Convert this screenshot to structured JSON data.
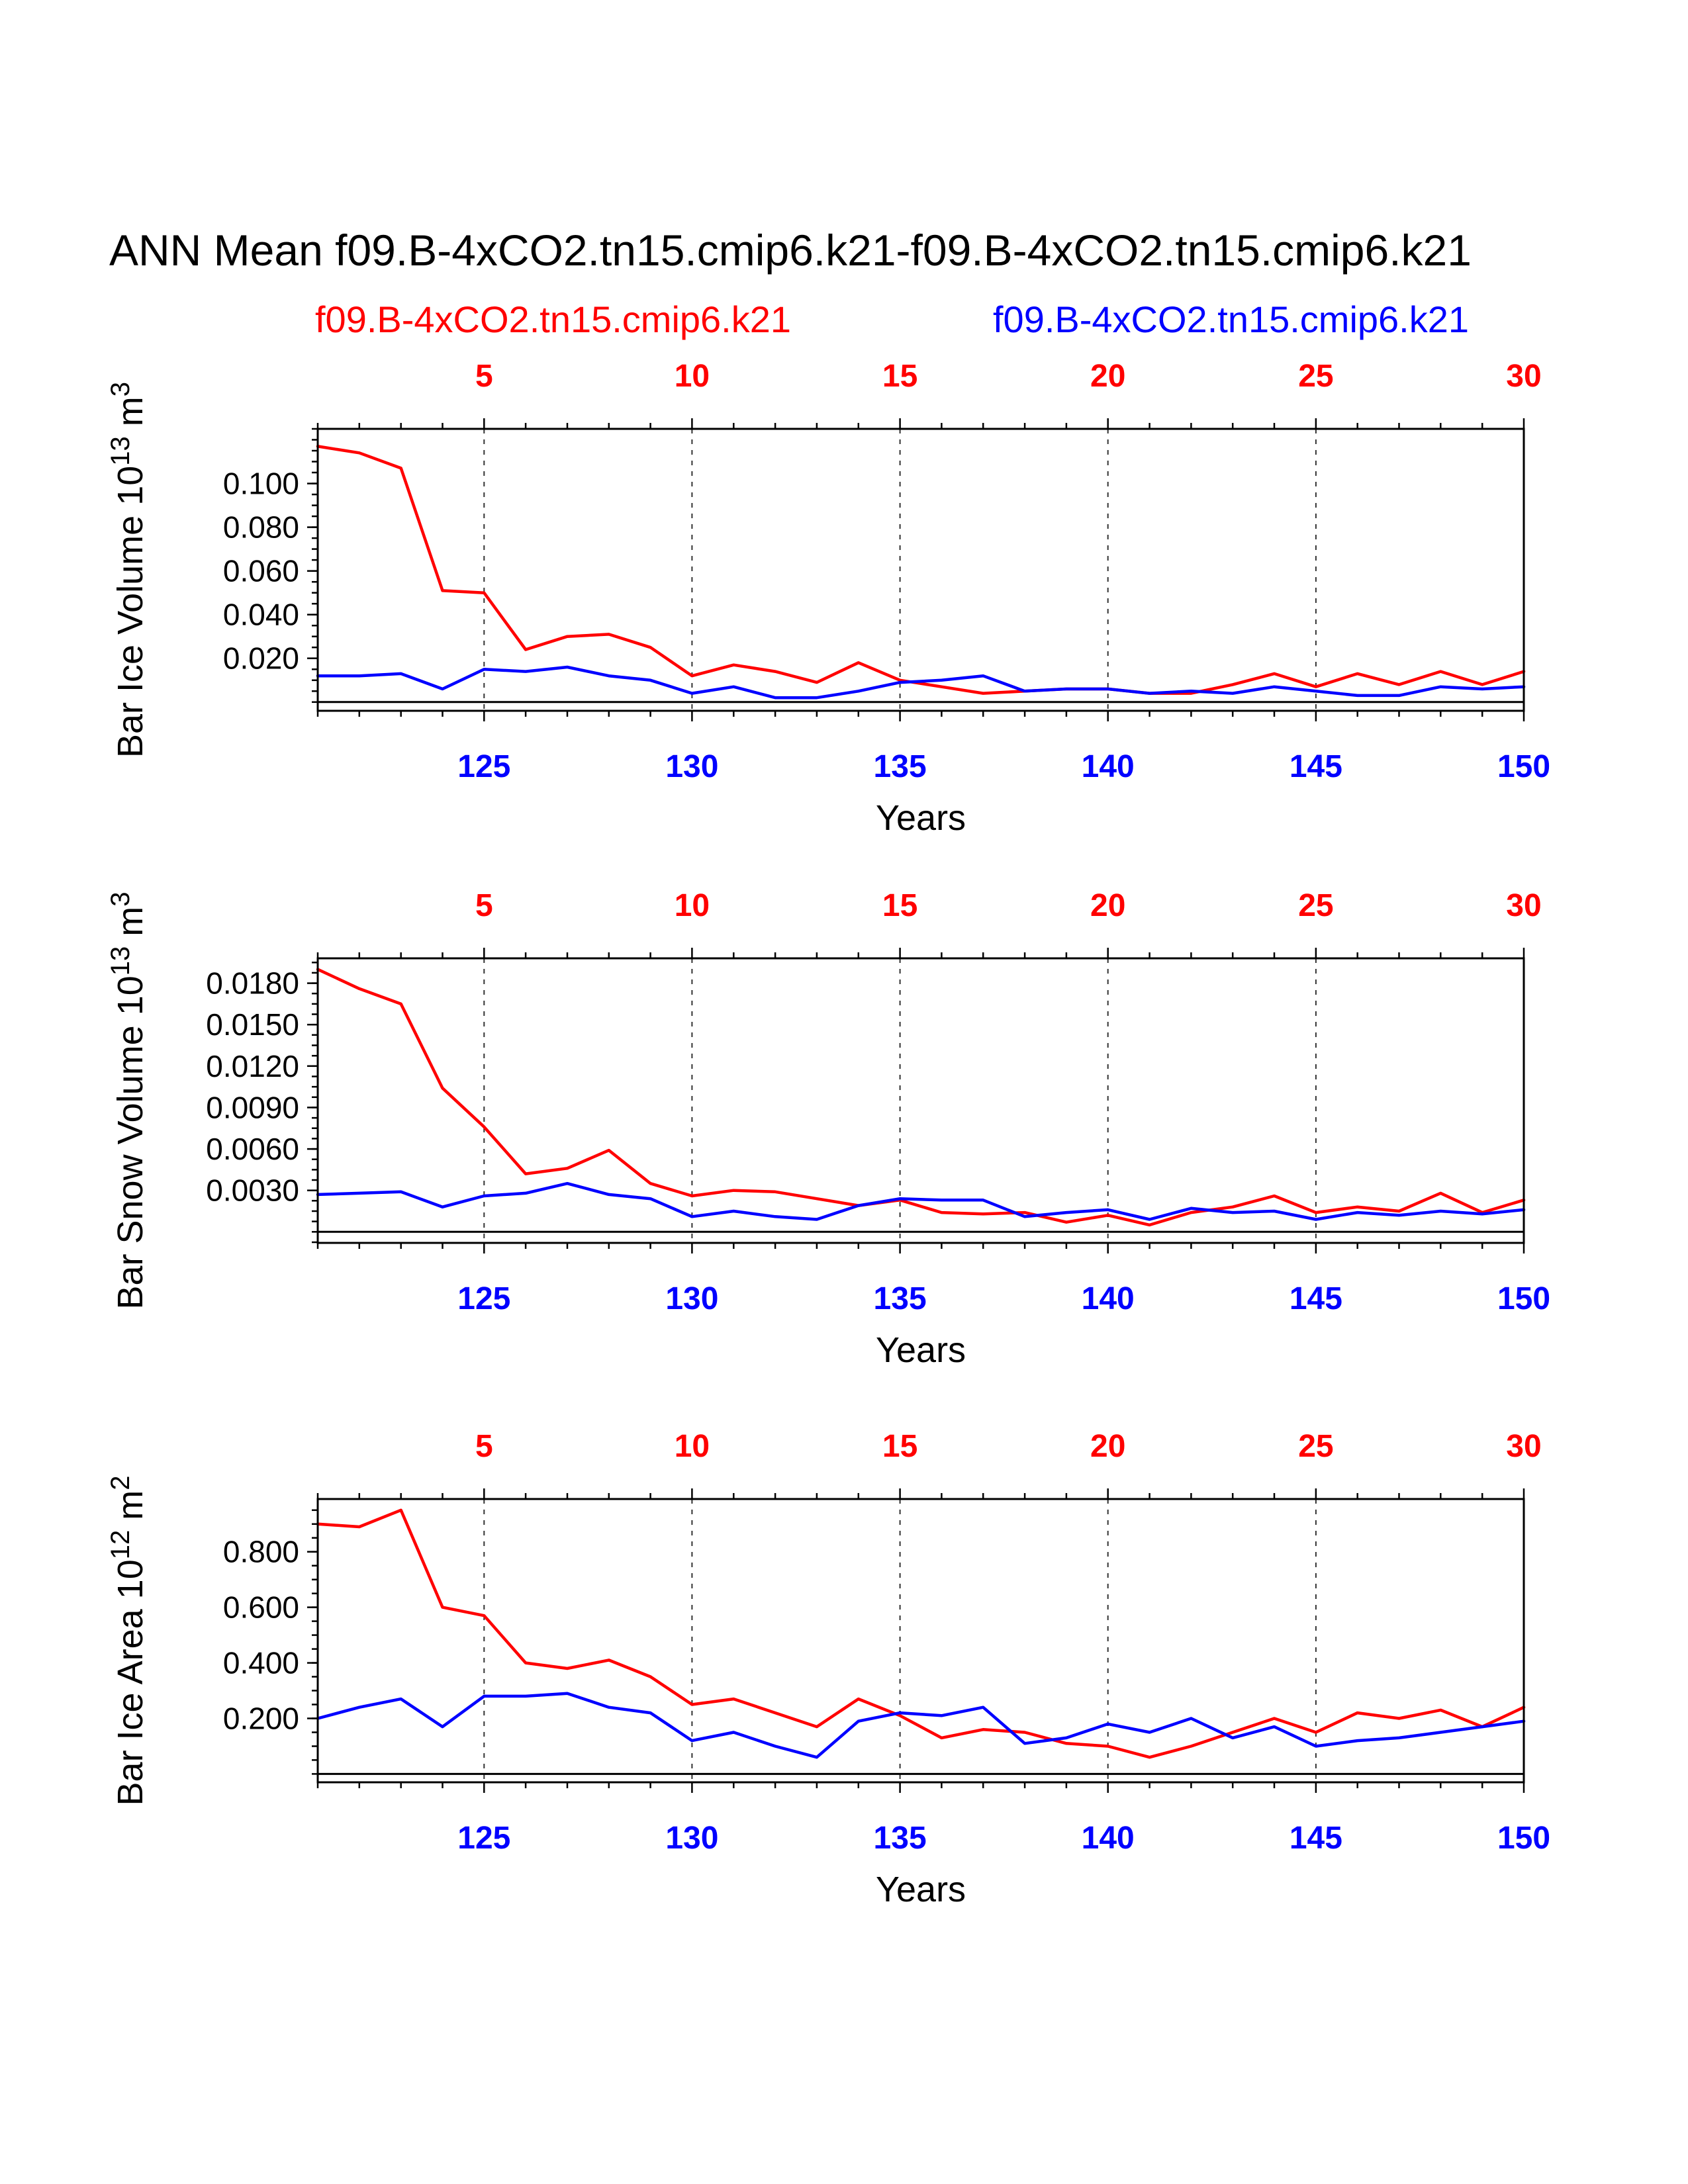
{
  "page": {
    "title": "ANN Mean f09.B-4xCO2.tn15.cmip6.k21-f09.B-4xCO2.tn15.cmip6.k21"
  },
  "legend": {
    "series1": {
      "label": "f09.B-4xCO2.tn15.cmip6.k21",
      "color": "#ff0000"
    },
    "series2": {
      "label": "f09.B-4xCO2.tn15.cmip6.k21",
      "color": "#0000ff"
    }
  },
  "chart_data": [
    {
      "type": "line",
      "ylabel": "Bar Ice Volume 10^13 m^3",
      "xlabel": "Years",
      "xlim": [
        121,
        150
      ],
      "ylim": [
        -0.004,
        0.125
      ],
      "x": [
        121,
        122,
        123,
        124,
        125,
        126,
        127,
        128,
        129,
        130,
        131,
        132,
        133,
        134,
        135,
        136,
        137,
        138,
        139,
        140,
        141,
        142,
        143,
        144,
        145,
        146,
        147,
        148,
        149,
        150
      ],
      "x_bottom_tick_values": [
        125,
        130,
        135,
        140,
        145,
        150
      ],
      "x_bottom_tick_labels": [
        "125",
        "130",
        "135",
        "140",
        "145",
        "150"
      ],
      "x_top_tick_values": [
        125,
        130,
        135,
        140,
        145,
        150
      ],
      "x_top_tick_labels": [
        "5",
        "10",
        "15",
        "20",
        "25",
        "30"
      ],
      "ytick_values": [
        0.02,
        0.04,
        0.06,
        0.08,
        0.1
      ],
      "ytick_labels": [
        "0.020",
        "0.040",
        "0.060",
        "0.080",
        "0.100"
      ],
      "y_minor_step": 0.005,
      "grid_x_values": [
        125,
        130,
        135,
        140,
        145
      ],
      "zero_line": true,
      "legend_position": "top",
      "grid": "x-dashed",
      "series": [
        {
          "name": "f09.B-4xCO2.tn15.cmip6.k21",
          "color": "#ff0000",
          "values": [
            0.117,
            0.114,
            0.107,
            0.051,
            0.05,
            0.024,
            0.03,
            0.031,
            0.025,
            0.012,
            0.017,
            0.014,
            0.009,
            0.018,
            0.01,
            0.007,
            0.004,
            0.005,
            0.006,
            0.006,
            0.004,
            0.004,
            0.008,
            0.013,
            0.007,
            0.013,
            0.008,
            0.014,
            0.008,
            0.014
          ]
        },
        {
          "name": "f09.B-4xCO2.tn15.cmip6.k21",
          "color": "#0000ff",
          "values": [
            0.012,
            0.012,
            0.013,
            0.006,
            0.015,
            0.014,
            0.016,
            0.012,
            0.01,
            0.004,
            0.007,
            0.002,
            0.002,
            0.005,
            0.009,
            0.01,
            0.012,
            0.005,
            0.006,
            0.006,
            0.004,
            0.005,
            0.004,
            0.007,
            0.005,
            0.003,
            0.003,
            0.007,
            0.006,
            0.007
          ]
        }
      ]
    },
    {
      "type": "line",
      "ylabel": "Bar Snow Volume 10^13 m^3",
      "xlabel": "Years",
      "xlim": [
        121,
        150
      ],
      "ylim": [
        -0.0008,
        0.0198
      ],
      "x": [
        121,
        122,
        123,
        124,
        125,
        126,
        127,
        128,
        129,
        130,
        131,
        132,
        133,
        134,
        135,
        136,
        137,
        138,
        139,
        140,
        141,
        142,
        143,
        144,
        145,
        146,
        147,
        148,
        149,
        150
      ],
      "x_bottom_tick_values": [
        125,
        130,
        135,
        140,
        145,
        150
      ],
      "x_bottom_tick_labels": [
        "125",
        "130",
        "135",
        "140",
        "145",
        "150"
      ],
      "x_top_tick_values": [
        125,
        130,
        135,
        140,
        145,
        150
      ],
      "x_top_tick_labels": [
        "5",
        "10",
        "15",
        "20",
        "25",
        "30"
      ],
      "ytick_values": [
        0.003,
        0.006,
        0.009,
        0.012,
        0.015,
        0.018
      ],
      "ytick_labels": [
        "0.0030",
        "0.0060",
        "0.0090",
        "0.0120",
        "0.0150",
        "0.0180"
      ],
      "y_minor_step": 0.00075,
      "grid_x_values": [
        125,
        130,
        135,
        140,
        145
      ],
      "zero_line": true,
      "legend_position": "none",
      "grid": "x-dashed",
      "series": [
        {
          "name": "f09.B-4xCO2.tn15.cmip6.k21",
          "color": "#ff0000",
          "values": [
            0.019,
            0.0176,
            0.0165,
            0.0104,
            0.0076,
            0.0042,
            0.0046,
            0.0059,
            0.0035,
            0.0026,
            0.003,
            0.0029,
            0.0024,
            0.0019,
            0.0023,
            0.0014,
            0.0013,
            0.0014,
            0.0007,
            0.0012,
            0.0005,
            0.0014,
            0.0018,
            0.0026,
            0.0014,
            0.0018,
            0.0015,
            0.0028,
            0.0014,
            0.0023
          ]
        },
        {
          "name": "f09.B-4xCO2.tn15.cmip6.k21",
          "color": "#0000ff",
          "values": [
            0.0027,
            0.0028,
            0.0029,
            0.0018,
            0.0026,
            0.0028,
            0.0035,
            0.0027,
            0.0024,
            0.0011,
            0.0015,
            0.0011,
            0.0009,
            0.0019,
            0.0024,
            0.0023,
            0.0023,
            0.0011,
            0.0014,
            0.0016,
            0.0009,
            0.0017,
            0.0014,
            0.0015,
            0.0009,
            0.0014,
            0.0012,
            0.0015,
            0.0013,
            0.0016
          ]
        }
      ]
    },
    {
      "type": "line",
      "ylabel": "Bar Ice Area 10^12 m^2",
      "xlabel": "Years",
      "xlim": [
        121,
        150
      ],
      "ylim": [
        -0.03,
        0.99
      ],
      "x": [
        121,
        122,
        123,
        124,
        125,
        126,
        127,
        128,
        129,
        130,
        131,
        132,
        133,
        134,
        135,
        136,
        137,
        138,
        139,
        140,
        141,
        142,
        143,
        144,
        145,
        146,
        147,
        148,
        149,
        150
      ],
      "x_bottom_tick_values": [
        125,
        130,
        135,
        140,
        145,
        150
      ],
      "x_bottom_tick_labels": [
        "125",
        "130",
        "135",
        "140",
        "145",
        "150"
      ],
      "x_top_tick_values": [
        125,
        130,
        135,
        140,
        145,
        150
      ],
      "x_top_tick_labels": [
        "5",
        "10",
        "15",
        "20",
        "25",
        "30"
      ],
      "ytick_values": [
        0.2,
        0.4,
        0.6,
        0.8
      ],
      "ytick_labels": [
        "0.200",
        "0.400",
        "0.600",
        "0.800"
      ],
      "y_minor_step": 0.05,
      "grid_x_values": [
        125,
        130,
        135,
        140,
        145
      ],
      "zero_line": true,
      "legend_position": "none",
      "grid": "x-dashed",
      "series": [
        {
          "name": "f09.B-4xCO2.tn15.cmip6.k21",
          "color": "#ff0000",
          "values": [
            0.9,
            0.89,
            0.95,
            0.6,
            0.57,
            0.4,
            0.38,
            0.41,
            0.35,
            0.25,
            0.27,
            0.22,
            0.17,
            0.27,
            0.21,
            0.13,
            0.16,
            0.15,
            0.11,
            0.1,
            0.06,
            0.1,
            0.15,
            0.2,
            0.15,
            0.22,
            0.2,
            0.23,
            0.17,
            0.24
          ]
        },
        {
          "name": "f09.B-4xCO2.tn15.cmip6.k21",
          "color": "#0000ff",
          "values": [
            0.2,
            0.24,
            0.27,
            0.17,
            0.28,
            0.28,
            0.29,
            0.24,
            0.22,
            0.12,
            0.15,
            0.1,
            0.06,
            0.19,
            0.22,
            0.21,
            0.24,
            0.11,
            0.13,
            0.18,
            0.15,
            0.2,
            0.13,
            0.17,
            0.1,
            0.12,
            0.13,
            0.15,
            0.17,
            0.19
          ]
        }
      ]
    }
  ]
}
